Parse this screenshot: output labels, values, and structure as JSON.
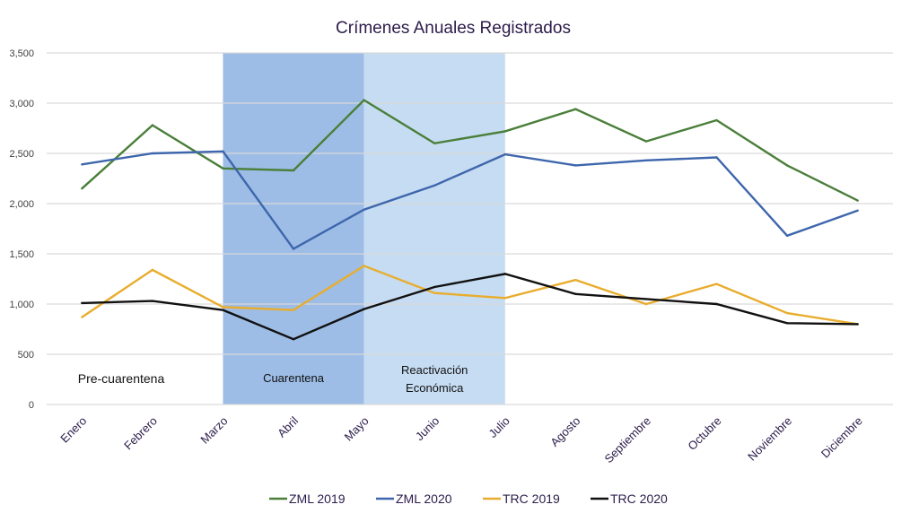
{
  "chart_data": {
    "type": "line",
    "title": "Crímenes Anuales Registrados",
    "xlabel": "",
    "ylabel": "",
    "ylim": [
      0,
      3500
    ],
    "yticks": [
      0,
      500,
      1000,
      1500,
      2000,
      2500,
      3000,
      3500
    ],
    "ytick_labels": [
      "0",
      "500",
      "1,000",
      "1,500",
      "2,000",
      "2,500",
      "3,000",
      "3,500"
    ],
    "grid": true,
    "legend_position": "bottom",
    "categories": [
      "Enero",
      "Febrero",
      "Marzo",
      "Abril",
      "Mayo",
      "Junio",
      "Julio",
      "Agosto",
      "Septiembre",
      "Octubre",
      "Noviembre",
      "Diciembre"
    ],
    "series": [
      {
        "name": "ZML 2019",
        "color": "#4a7f3a",
        "values": [
          2150,
          2780,
          2350,
          2330,
          3030,
          2600,
          2720,
          2940,
          2620,
          2830,
          2380,
          2030
        ]
      },
      {
        "name": "ZML 2020",
        "color": "#3e66ac",
        "values": [
          2390,
          2500,
          2520,
          1550,
          1940,
          2180,
          2490,
          2380,
          2430,
          2460,
          1680,
          1930
        ]
      },
      {
        "name": "TRC 2019",
        "color": "#e8ad2e",
        "values": [
          870,
          1340,
          970,
          940,
          1380,
          1110,
          1060,
          1240,
          1000,
          1200,
          910,
          800
        ]
      },
      {
        "name": "TRC 2020",
        "color": "#111111",
        "values": [
          1010,
          1030,
          940,
          650,
          950,
          1170,
          1300,
          1100,
          1050,
          1000,
          810,
          800
        ]
      }
    ],
    "annotations": [
      {
        "label": "Pre-cuarentena",
        "type": "text"
      },
      {
        "label": "Cuarentena",
        "type": "band",
        "from": "Marzo",
        "to": "Mayo",
        "color": "#9dbde6"
      },
      {
        "label": "Reactivación Económica",
        "label_lines": [
          "Reactivación",
          "Económica"
        ],
        "type": "band",
        "from": "Mayo",
        "to": "Julio",
        "color": "#c6dcf2"
      }
    ]
  }
}
